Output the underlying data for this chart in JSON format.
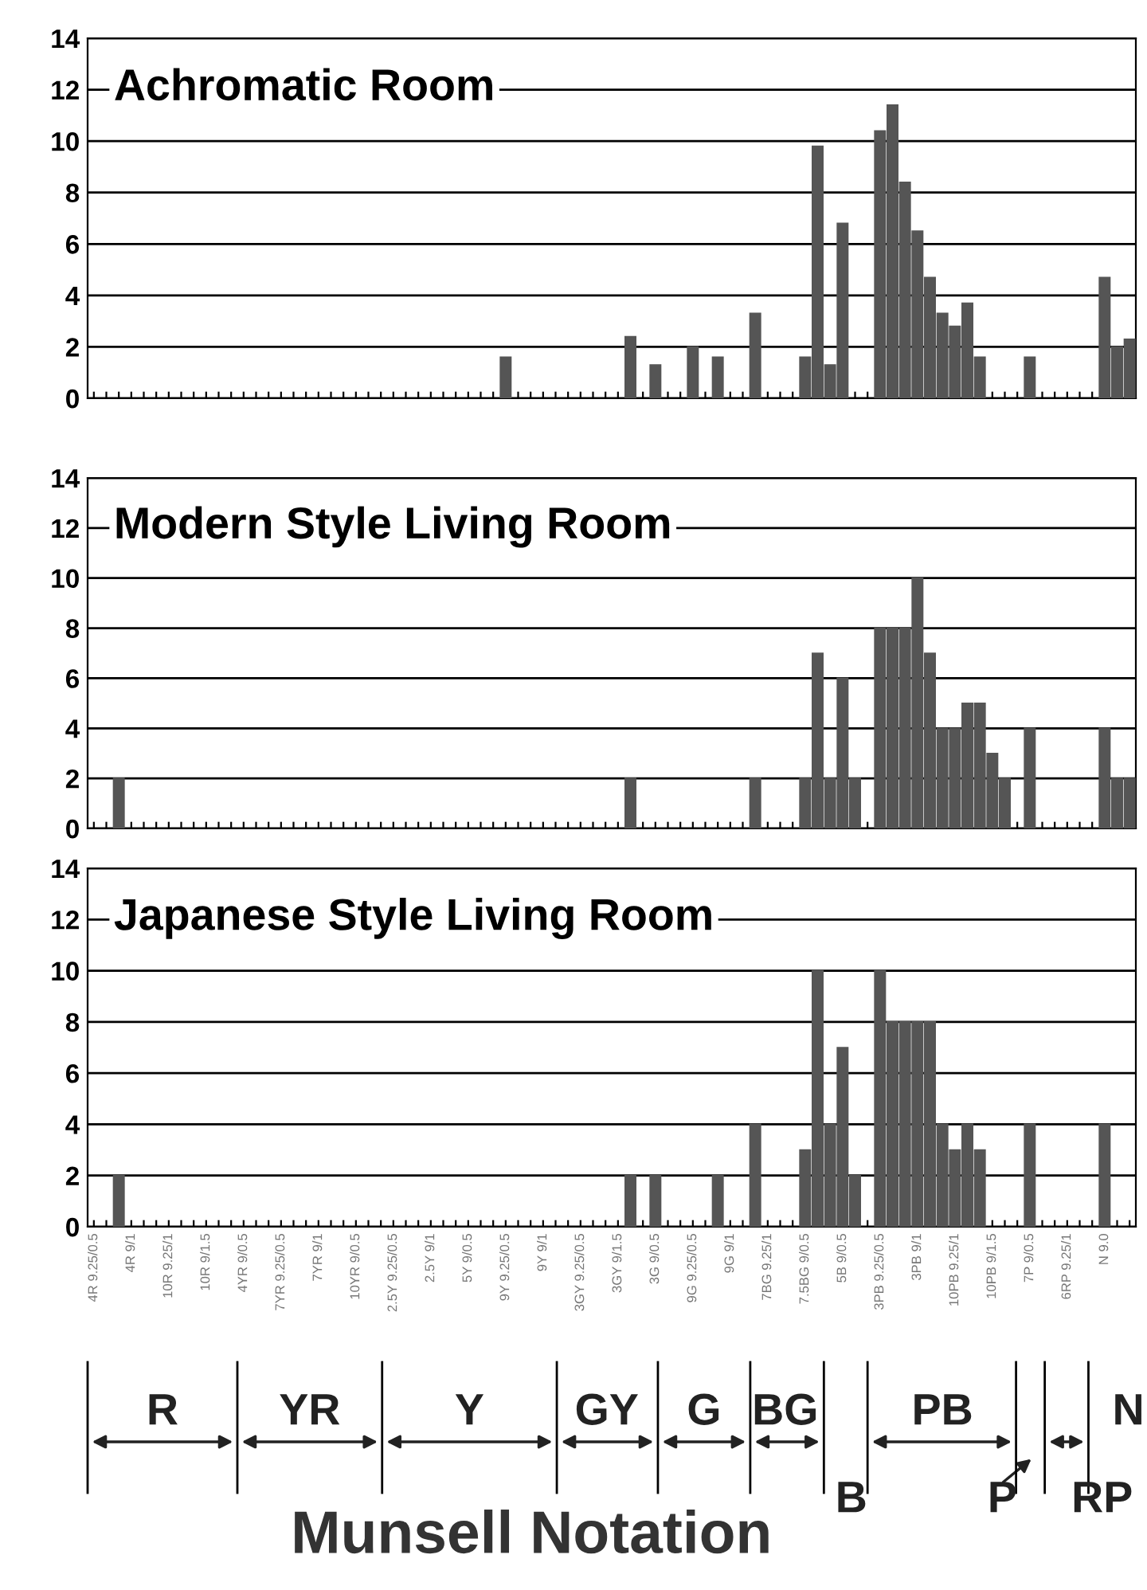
{
  "chart_data": [
    {
      "type": "bar",
      "title": "Achromatic Room",
      "tick_labels": "y",
      "grid": "y",
      "color": "#555555",
      "categories": [
        null,
        null,
        null,
        null,
        null,
        null,
        null,
        null,
        null,
        null,
        null,
        null,
        null,
        null,
        null,
        null,
        null,
        null,
        null,
        null,
        null,
        null,
        null,
        null,
        null,
        null,
        null,
        null,
        null,
        null,
        null,
        null,
        null,
        null,
        null,
        null,
        null,
        null,
        null,
        null,
        null,
        null,
        null,
        null,
        null,
        null,
        null,
        null,
        null,
        null,
        null,
        null,
        null,
        null,
        null,
        null,
        null,
        null,
        null,
        null,
        null,
        null,
        null,
        null,
        null,
        null,
        null,
        null,
        null,
        null,
        null,
        null,
        null,
        null,
        null,
        null,
        null,
        null,
        null,
        null,
        null,
        null,
        null,
        null
      ],
      "values": [
        null,
        null,
        null,
        null,
        null,
        null,
        null,
        null,
        null,
        null,
        null,
        null,
        null,
        null,
        null,
        null,
        null,
        null,
        null,
        null,
        null,
        null,
        null,
        null,
        null,
        null,
        null,
        null,
        null,
        null,
        null,
        null,
        null,
        1.6,
        null,
        null,
        null,
        null,
        null,
        null,
        null,
        null,
        null,
        2.4,
        null,
        1.3,
        null,
        null,
        2.0,
        null,
        1.6,
        null,
        null,
        3.3,
        null,
        null,
        null,
        1.6,
        9.8,
        1.3,
        6.8,
        null,
        null,
        10.4,
        11.4,
        8.4,
        6.5,
        4.7,
        3.3,
        2.8,
        3.7,
        1.6,
        null,
        null,
        null,
        1.6,
        null,
        null,
        null,
        null,
        null,
        4.7,
        2.0,
        2.3
      ],
      "ylim": [
        0,
        14
      ],
      "yticks": [
        0,
        2,
        4,
        6,
        8,
        10,
        12,
        14
      ]
    },
    {
      "type": "bar",
      "title": "Modern Style Living Room",
      "tick_labels": "y",
      "grid": "y",
      "color": "#555555",
      "categories": [
        null,
        null,
        null,
        null,
        null,
        null,
        null,
        null,
        null,
        null,
        null,
        null,
        null,
        null,
        null,
        null,
        null,
        null,
        null,
        null,
        null,
        null,
        null,
        null,
        null,
        null,
        null,
        null,
        null,
        null,
        null,
        null,
        null,
        null,
        null,
        null,
        null,
        null,
        null,
        null,
        null,
        null,
        null,
        null,
        null,
        null,
        null,
        null,
        null,
        null,
        null,
        null,
        null,
        null,
        null,
        null,
        null,
        null,
        null,
        null,
        null,
        null,
        null,
        null,
        null,
        null,
        null,
        null,
        null,
        null,
        null,
        null,
        null,
        null,
        null,
        null,
        null,
        null,
        null,
        null,
        null,
        null,
        null,
        null
      ],
      "values": [
        null,
        null,
        2,
        null,
        null,
        null,
        null,
        null,
        null,
        null,
        null,
        null,
        null,
        null,
        null,
        null,
        null,
        null,
        null,
        null,
        null,
        null,
        null,
        null,
        null,
        null,
        null,
        null,
        null,
        null,
        null,
        null,
        null,
        null,
        null,
        null,
        null,
        null,
        null,
        null,
        null,
        null,
        null,
        2,
        null,
        null,
        null,
        null,
        null,
        null,
        null,
        null,
        null,
        2,
        null,
        null,
        null,
        2,
        7,
        2,
        6,
        2,
        null,
        8,
        8,
        8,
        10,
        7,
        4,
        4,
        5,
        5,
        3,
        2,
        null,
        4,
        null,
        null,
        null,
        null,
        null,
        4,
        2,
        2
      ],
      "ylim": [
        0,
        14
      ],
      "yticks": [
        0,
        2,
        4,
        6,
        8,
        10,
        12,
        14
      ]
    },
    {
      "type": "bar",
      "title": "Japanese Style Living Room",
      "grid": "y",
      "color": "#555555",
      "xlabel": "Munsell Notation",
      "categories": [
        "4R 9.25/0.5",
        null,
        null,
        "4R 9/1",
        null,
        null,
        "10R 9.25/1",
        null,
        null,
        "10R 9/1.5",
        null,
        null,
        "4YR 9/0.5",
        null,
        null,
        "7YR 9.25/0.5",
        null,
        null,
        "7YR 9/1",
        null,
        null,
        "10YR 9/0.5",
        null,
        null,
        "2.5Y 9.25/0.5",
        null,
        null,
        "2.5Y 9/1",
        null,
        null,
        "5Y 9/0.5",
        null,
        null,
        "9Y 9.25/0.5",
        null,
        null,
        "9Y 9/1",
        null,
        null,
        "3GY 9.25/0.5",
        null,
        null,
        "3GY 9/1.5",
        null,
        null,
        "3G 9/0.5",
        null,
        null,
        "9G 9.25/0.5",
        null,
        null,
        "9G 9/1",
        null,
        null,
        "7BG 9.25/1",
        null,
        null,
        "7.5BG 9/0.5",
        null,
        null,
        "5B 9/0.5",
        null,
        null,
        "3PB 9.25/0.5",
        null,
        null,
        "3PB 9/1",
        null,
        null,
        "10PB 9.25/1",
        null,
        null,
        "10PB 9/1.5",
        null,
        null,
        "7P 9/0.5",
        null,
        null,
        "6RP 9.25/1",
        null,
        null,
        "N 9.0",
        null,
        null
      ],
      "values": [
        null,
        null,
        2,
        null,
        null,
        null,
        null,
        null,
        null,
        null,
        null,
        null,
        null,
        null,
        null,
        null,
        null,
        null,
        null,
        null,
        null,
        null,
        null,
        null,
        null,
        null,
        null,
        null,
        null,
        null,
        null,
        null,
        null,
        null,
        null,
        null,
        null,
        null,
        null,
        null,
        null,
        null,
        null,
        2,
        null,
        2,
        null,
        null,
        null,
        null,
        2,
        null,
        null,
        4,
        null,
        null,
        null,
        3,
        10,
        4,
        7,
        2,
        null,
        10,
        8,
        8,
        8,
        8,
        4,
        3,
        4,
        3,
        null,
        null,
        null,
        4,
        null,
        null,
        null,
        null,
        null,
        4,
        null,
        null
      ],
      "ylim": [
        0,
        14
      ],
      "yticks": [
        0,
        2,
        4,
        6,
        8,
        10,
        12,
        14
      ],
      "annotations": [
        "R",
        "YR",
        "Y",
        "GY",
        "G",
        "BG",
        "B",
        "PB",
        "P",
        "RP",
        "N"
      ]
    }
  ]
}
